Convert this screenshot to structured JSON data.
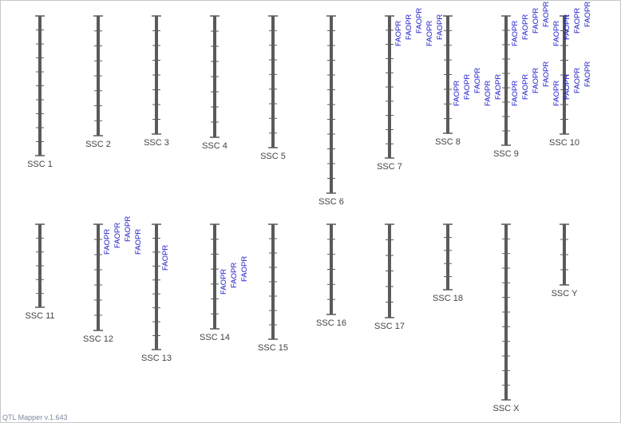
{
  "app": {
    "version_label": "QTL Mapper v.1.643"
  },
  "chromosomes": [
    {
      "id": "ssc1",
      "label": "SSC 1",
      "length": 175,
      "ticks": 9
    },
    {
      "id": "ssc2",
      "label": "SSC 2",
      "length": 150,
      "ticks": 7
    },
    {
      "id": "ssc3",
      "label": "SSC 3",
      "length": 148,
      "ticks": 7
    },
    {
      "id": "ssc4",
      "label": "SSC 4",
      "length": 152,
      "ticks": 7
    },
    {
      "id": "ssc5",
      "label": "SSC 5",
      "length": 165,
      "ticks": 8
    },
    {
      "id": "ssc6",
      "label": "SSC 6",
      "length": 222,
      "ticks": 11
    },
    {
      "id": "ssc7",
      "label": "SSC 7",
      "length": 178,
      "ticks": 9
    },
    {
      "id": "ssc8",
      "label": "SSC 8",
      "length": 147,
      "ticks": 7
    },
    {
      "id": "ssc9",
      "label": "SSC 9",
      "length": 162,
      "ticks": 8
    },
    {
      "id": "ssc10",
      "label": "SSC 10",
      "length": 148,
      "ticks": 7
    },
    {
      "id": "ssc11",
      "label": "SSC 11",
      "length": 104,
      "ticks": 5
    },
    {
      "id": "ssc12",
      "label": "SSC 12",
      "length": 133,
      "ticks": 6
    },
    {
      "id": "ssc13",
      "label": "SSC 13",
      "length": 157,
      "ticks": 8
    },
    {
      "id": "ssc14",
      "label": "SSC 14",
      "length": 131,
      "ticks": 6
    },
    {
      "id": "ssc15",
      "label": "SSC 15",
      "length": 144,
      "ticks": 7
    },
    {
      "id": "ssc16",
      "label": "SSC 16",
      "length": 113,
      "ticks": 5
    },
    {
      "id": "ssc17",
      "label": "SSC 17",
      "length": 117,
      "ticks": 5
    },
    {
      "id": "ssc18",
      "label": "SSC 18",
      "length": 82,
      "ticks": 4
    },
    {
      "id": "sscx",
      "label": "SSC X",
      "length": 220,
      "ticks": 11
    },
    {
      "id": "sscy",
      "label": "SSC Y",
      "length": 76,
      "ticks": 3
    }
  ],
  "qtls": [
    {
      "chr": "ssc7",
      "pos": 0,
      "label": "FAOPR"
    },
    {
      "chr": "ssc7",
      "pos": 0,
      "label": "FAOPR"
    },
    {
      "chr": "ssc7",
      "pos": 0,
      "label": "FAOPR"
    },
    {
      "chr": "ssc7",
      "pos": 0,
      "label": "FAOPR"
    },
    {
      "chr": "ssc7",
      "pos": 0,
      "label": "FAOPR"
    },
    {
      "chr": "ssc8",
      "pos": 75,
      "label": "FAOPR"
    },
    {
      "chr": "ssc8",
      "pos": 75,
      "label": "FAOPR"
    },
    {
      "chr": "ssc8",
      "pos": 75,
      "label": "FAOPR"
    },
    {
      "chr": "ssc8",
      "pos": 75,
      "label": "FAOPR"
    },
    {
      "chr": "ssc8",
      "pos": 75,
      "label": "FAOPR"
    },
    {
      "chr": "ssc9",
      "pos": 0,
      "label": "FAOPR"
    },
    {
      "chr": "ssc9",
      "pos": 0,
      "label": "FAOPR"
    },
    {
      "chr": "ssc9",
      "pos": 0,
      "label": "FAOPR"
    },
    {
      "chr": "ssc9",
      "pos": 0,
      "label": "FAOPR"
    },
    {
      "chr": "ssc9",
      "pos": 0,
      "label": "FAOPR"
    },
    {
      "chr": "ssc9",
      "pos": 0,
      "label": "FAOPR"
    },
    {
      "chr": "ssc9",
      "pos": 0,
      "label": "FAOPR"
    },
    {
      "chr": "ssc9",
      "pos": 0,
      "label": "FAOPR"
    },
    {
      "chr": "ssc9",
      "pos": 75,
      "label": "FAOPR"
    },
    {
      "chr": "ssc9",
      "pos": 75,
      "label": "FAOPR"
    },
    {
      "chr": "ssc9",
      "pos": 75,
      "label": "FAOPR"
    },
    {
      "chr": "ssc9",
      "pos": 75,
      "label": "FAOPR"
    },
    {
      "chr": "ssc9",
      "pos": 75,
      "label": "FAOPR"
    },
    {
      "chr": "ssc9",
      "pos": 75,
      "label": "FAOPR"
    },
    {
      "chr": "ssc9",
      "pos": 75,
      "label": "FAOPR"
    },
    {
      "chr": "ssc9",
      "pos": 75,
      "label": "FAOPR"
    },
    {
      "chr": "ssc12",
      "pos": 0,
      "label": "FAOPR"
    },
    {
      "chr": "ssc12",
      "pos": 0,
      "label": "FAOPR"
    },
    {
      "chr": "ssc12",
      "pos": 0,
      "label": "FAOPR"
    },
    {
      "chr": "ssc12",
      "pos": 0,
      "label": "FAOPR"
    },
    {
      "chr": "ssc13",
      "pos": 20,
      "label": "FAOPR"
    },
    {
      "chr": "ssc14",
      "pos": 50,
      "label": "FAOPR"
    },
    {
      "chr": "ssc14",
      "pos": 50,
      "label": "FAOPR"
    },
    {
      "chr": "ssc14",
      "pos": 50,
      "label": "FAOPR"
    }
  ],
  "colors": {
    "chromosome": "#5a5a5a",
    "qtl_text": "#1a1acc",
    "label_text": "#444444",
    "footer_text": "#7a8aa0"
  }
}
